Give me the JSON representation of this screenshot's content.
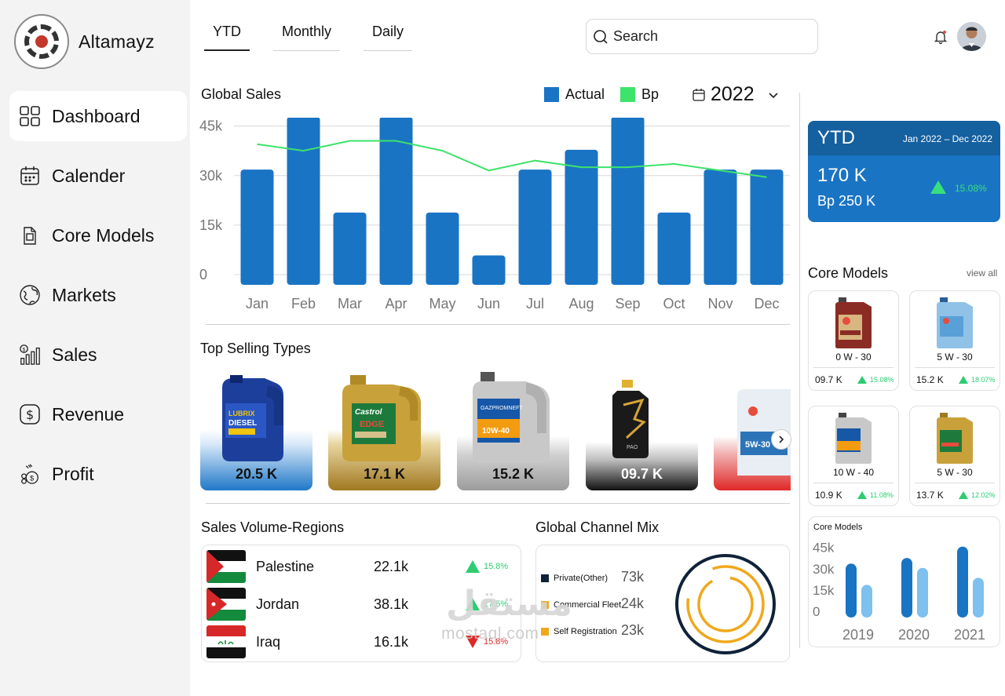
{
  "brand": {
    "name": "Altamayz"
  },
  "sidebar": {
    "items": [
      {
        "label": "Dashboard",
        "icon": "grid-icon",
        "active": true
      },
      {
        "label": "Calender",
        "icon": "calendar-icon"
      },
      {
        "label": "Core Models",
        "icon": "oil-can-icon"
      },
      {
        "label": "Markets",
        "icon": "globe-icon"
      },
      {
        "label": "Sales",
        "icon": "sales-chart-icon"
      },
      {
        "label": "Revenue",
        "icon": "dollar-icon"
      },
      {
        "label": "Profit",
        "icon": "profit-icon"
      }
    ]
  },
  "header": {
    "tabs": [
      {
        "label": "YTD",
        "active": true
      },
      {
        "label": "Monthly"
      },
      {
        "label": "Daily"
      }
    ],
    "search": {
      "placeholder": "Search"
    }
  },
  "global_sales": {
    "title": "Global Sales",
    "legend": {
      "actual": "Actual",
      "bp": "Bp"
    },
    "year": "2022",
    "colors": {
      "actual": "#1a74c4",
      "bp": "#3de36b"
    }
  },
  "chart_data": [
    {
      "type": "bar",
      "title": "Global Sales",
      "categories": [
        "Jan",
        "Feb",
        "Mar",
        "Apr",
        "May",
        "Jun",
        "Jul",
        "Aug",
        "Sep",
        "Oct",
        "Nov",
        "Dec"
      ],
      "series": [
        {
          "name": "Actual",
          "type": "bar",
          "values": [
            33000,
            49000,
            20000,
            49000,
            20000,
            7000,
            33000,
            39000,
            49000,
            20000,
            33000,
            33000
          ]
        },
        {
          "name": "Bp",
          "type": "line",
          "values": [
            40000,
            38000,
            41000,
            41000,
            38000,
            32000,
            35000,
            33000,
            33000,
            34000,
            32000,
            30000
          ]
        }
      ],
      "y_ticks": [
        "0",
        "15k",
        "30k",
        "45k"
      ],
      "ylim": [
        0,
        48000
      ],
      "grid": true,
      "legend": "top-right"
    },
    {
      "type": "bar",
      "title": "Core Models",
      "categories": [
        "2019",
        "2020",
        "2021"
      ],
      "series": [
        {
          "values": [
            38000,
            42000,
            50000
          ]
        },
        {
          "values": [
            23000,
            35000,
            28000
          ]
        }
      ],
      "y_ticks": [
        "0",
        "15k",
        "30k",
        "45k"
      ],
      "ylim": [
        0,
        52000
      ]
    }
  ],
  "top_selling": {
    "title": "Top Selling Types",
    "items": [
      {
        "value": "20.5 K",
        "product": "Lubrix Diesel 15W-40",
        "theme": "blue"
      },
      {
        "value": "17.1 K",
        "product": "Castrol Edge 5W-30",
        "theme": "gold"
      },
      {
        "value": "15.2 K",
        "product": "Gazpromneft Premium L 10W-40",
        "theme": "silver"
      },
      {
        "value": "09.7 K",
        "product": "PAO",
        "theme": "black"
      },
      {
        "value": "",
        "product": "5W-30",
        "theme": "red"
      }
    ]
  },
  "regions": {
    "title": "Sales Volume-Regions",
    "items": [
      {
        "name": "Palestine",
        "value": "22.1k",
        "pct": "15.8%",
        "trend": "up"
      },
      {
        "name": "Jordan",
        "value": "38.1k",
        "pct": "17.5%",
        "trend": "up"
      },
      {
        "name": "Iraq",
        "value": "16.1k",
        "pct": "15.8%",
        "trend": "down"
      }
    ]
  },
  "channel_mix": {
    "title": "Global Channel Mix",
    "items": [
      {
        "label": "Private(Other)",
        "value": "73k",
        "color": "#0f2238"
      },
      {
        "label": "Commercial Fleet",
        "value": "24k",
        "color": "#f0a81c"
      },
      {
        "label": "Self Registration",
        "value": "23k",
        "color": "#f0a81c"
      }
    ]
  },
  "ytd_card": {
    "title": "YTD",
    "range_start": "Jan 2022",
    "range_sep": "–",
    "range_end": "Dec 2022",
    "value": "170 K",
    "bp": "Bp 250 K",
    "pct": "15.08%"
  },
  "core_models": {
    "title": "Core Models",
    "view_all": "view all",
    "items": [
      {
        "grade": "0 W - 30",
        "value": "09.7 K",
        "pct": "15.08%",
        "theme": "maroon"
      },
      {
        "grade": "5 W - 30",
        "value": "15.2 K",
        "pct": "18.07%",
        "theme": "lightblue"
      },
      {
        "grade": "10 W - 40",
        "value": "10.9 K",
        "pct": "11.08%",
        "theme": "silver"
      },
      {
        "grade": "5 W - 30",
        "value": "13.7 K",
        "pct": "12.02%",
        "theme": "gold"
      }
    ],
    "chart_title": "Core Models"
  },
  "watermark": {
    "arabic": "مستقل",
    "latin": "mostaql.com"
  }
}
